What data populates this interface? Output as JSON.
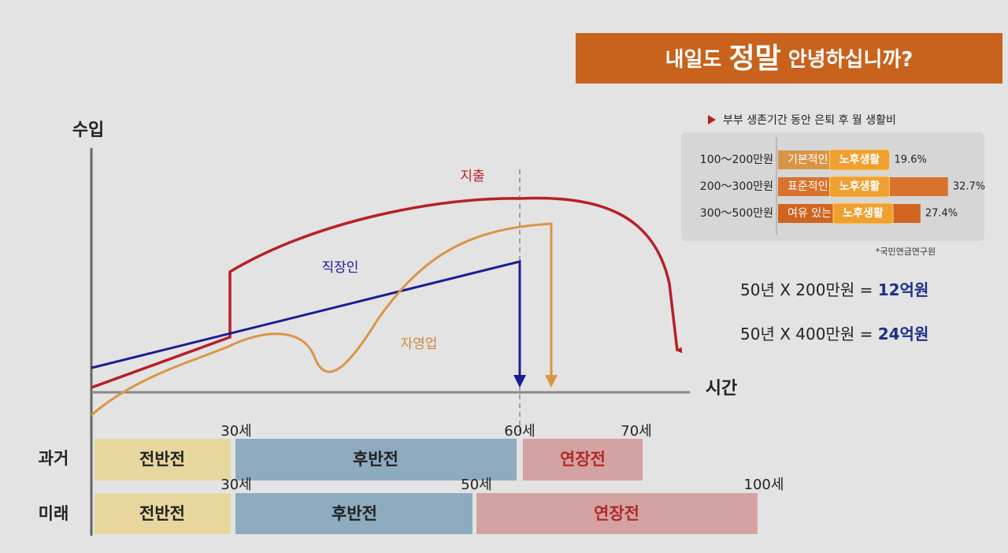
{
  "title": {
    "pre": "내일도",
    "emph": "정말",
    "post": "안녕하십니까?"
  },
  "chart": {
    "y_label": "수입",
    "x_label": "시간",
    "lines": {
      "expense": "지출",
      "employee": "직장인",
      "self_employed": "자영업"
    }
  },
  "timeline": {
    "rows": [
      {
        "label": "과거",
        "segments": [
          "전반전",
          "후반전",
          "연장전"
        ],
        "ages": [
          "30세",
          "60세",
          "70세"
        ]
      },
      {
        "label": "미래",
        "segments": [
          "전반전",
          "후반전",
          "연장전"
        ],
        "ages": [
          "30세",
          "50세",
          "100세"
        ]
      }
    ]
  },
  "cost_panel": {
    "heading": "부부 생존기간 동안 은퇴 후 월 생활비",
    "rows": [
      {
        "range": "100～200만원",
        "desc": "기본적인",
        "highlight": "노후생활",
        "value": 19.6,
        "label": "19.6%"
      },
      {
        "range": "200～300만원",
        "desc": "표준적인",
        "highlight": "노후생활",
        "value": 32.7,
        "label": "32.7%"
      },
      {
        "range": "300～500만원",
        "desc": "여유 있는",
        "highlight": "노후생활",
        "value": 27.4,
        "label": "27.4%"
      }
    ],
    "source": "*국민연금연구원"
  },
  "equations": [
    {
      "expr": "50년 X 200만원 =",
      "result": "12억원"
    },
    {
      "expr": "50년 X 400만원 =",
      "result": "24억원"
    }
  ]
}
